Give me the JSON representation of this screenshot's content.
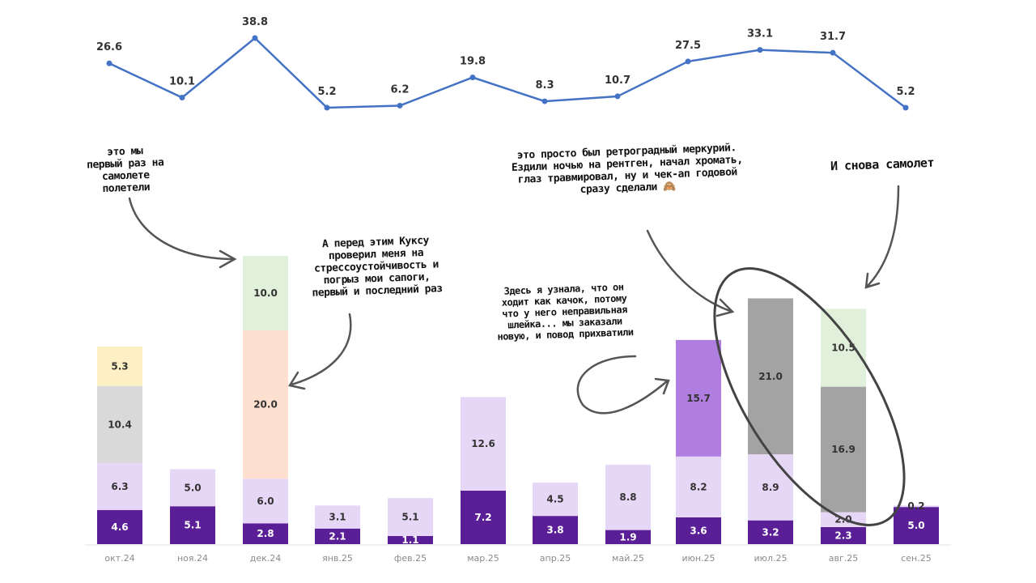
{
  "chart_data": [
    {
      "type": "line",
      "categories": [
        "окт.24",
        "ноя.24",
        "дек.24",
        "янв.25",
        "фев.25",
        "мар.25",
        "апр.25",
        "май.25",
        "июн.25",
        "июл.25",
        "авг.25",
        "сен.25"
      ],
      "values": [
        26.6,
        10.1,
        38.8,
        5.2,
        6.2,
        19.8,
        8.3,
        10.7,
        27.5,
        33.1,
        31.7,
        5.2
      ],
      "color": "#4472c4"
    },
    {
      "type": "bar",
      "stacked": true,
      "categories": [
        "окт.24",
        "ноя.24",
        "дек.24",
        "янв.25",
        "фев.25",
        "мар.25",
        "апр.25",
        "май.25",
        "июн.25",
        "июл.25",
        "авг.25",
        "сен.25"
      ],
      "stacks": [
        [
          {
            "v": 4.6,
            "c": "dark"
          },
          {
            "v": 6.3,
            "c": "light"
          },
          {
            "v": 10.4,
            "c": "grey"
          },
          {
            "v": 5.3,
            "c": "yellow"
          }
        ],
        [
          {
            "v": 5.1,
            "c": "dark"
          },
          {
            "v": 5.0,
            "c": "light"
          }
        ],
        [
          {
            "v": 2.8,
            "c": "dark"
          },
          {
            "v": 6.0,
            "c": "light"
          },
          {
            "v": 20.0,
            "c": "peach"
          },
          {
            "v": 10.0,
            "c": "green"
          }
        ],
        [
          {
            "v": 2.1,
            "c": "dark"
          },
          {
            "v": 3.1,
            "c": "light"
          }
        ],
        [
          {
            "v": 1.1,
            "c": "dark"
          },
          {
            "v": 5.1,
            "c": "light"
          }
        ],
        [
          {
            "v": 7.2,
            "c": "dark"
          },
          {
            "v": 12.6,
            "c": "light"
          }
        ],
        [
          {
            "v": 3.8,
            "c": "dark"
          },
          {
            "v": 4.5,
            "c": "light"
          }
        ],
        [
          {
            "v": 1.9,
            "c": "dark"
          },
          {
            "v": 8.8,
            "c": "light"
          }
        ],
        [
          {
            "v": 3.6,
            "c": "dark"
          },
          {
            "v": 8.2,
            "c": "light"
          },
          {
            "v": 15.7,
            "c": "mid"
          }
        ],
        [
          {
            "v": 3.2,
            "c": "dark"
          },
          {
            "v": 8.9,
            "c": "light"
          },
          {
            "v": 21.0,
            "c": "dgrey"
          }
        ],
        [
          {
            "v": 2.3,
            "c": "dark"
          },
          {
            "v": 2.0,
            "c": "light"
          },
          {
            "v": 16.9,
            "c": "dgrey"
          },
          {
            "v": 10.5,
            "c": "green"
          }
        ],
        [
          {
            "v": 5.0,
            "c": "dark"
          },
          {
            "v": 0.2,
            "c": "light"
          }
        ]
      ],
      "colors": {
        "dark": "#5a1e96",
        "light": "#e7d7f7",
        "grey": "#d9d9d9",
        "yellow": "#fcf0c4",
        "peach": "#fde0d0",
        "green": "#e1f0da",
        "mid": "#b07ee0",
        "dgrey": "#a3a3a3"
      }
    }
  ],
  "annotations": {
    "plane1": "это мы\nпервый раз на\nсамолете\nполетели",
    "kuksu": "А перед этим Куксу\nпроверил меня на\nстрессоустойчивость и\nпогрыз мои сапоги,\nпервый и последний раз",
    "kachok": "Здесь я узнала, что он\nходит как качок, потому\nчто у него неправильная\nшлейка... мы заказали\nновую, и повод прихватили",
    "mercury": "это просто был ретроградный меркурий.\nЕздили ночью на рентген, начал хромать,\nглаз травмировал, ну и чек-ап годовой\nсразу сделали 🙈",
    "plane2": "И снова самолет"
  }
}
